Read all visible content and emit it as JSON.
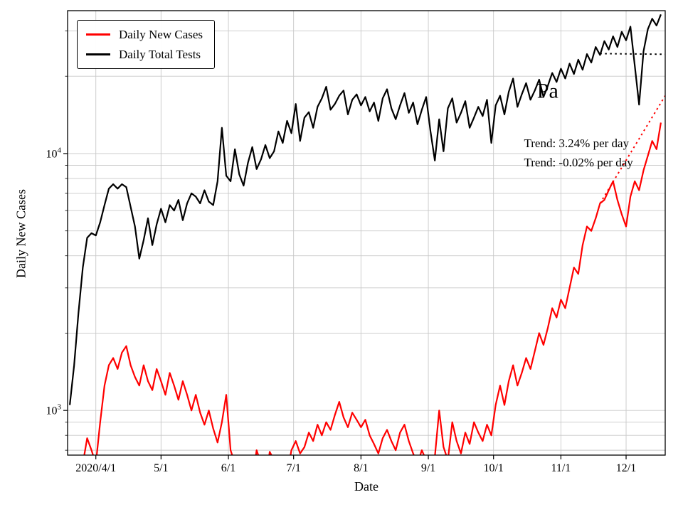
{
  "chart_data": {
    "type": "line",
    "xlabel": "Date",
    "ylabel": "Daily New Cases",
    "grid_color": "#c8c8c8",
    "axis_color": "#000000",
    "x_axis": {
      "range_days": [
        0,
        275
      ],
      "start_date": "2020-03-19",
      "ticks": [
        {
          "day": 13,
          "label": "2020/4/1"
        },
        {
          "day": 43,
          "label": "5/1"
        },
        {
          "day": 74,
          "label": "6/1"
        },
        {
          "day": 104,
          "label": "7/1"
        },
        {
          "day": 135,
          "label": "8/1"
        },
        {
          "day": 166,
          "label": "9/1"
        },
        {
          "day": 196,
          "label": "10/1"
        },
        {
          "day": 227,
          "label": "11/1"
        },
        {
          "day": 257,
          "label": "12/1"
        }
      ]
    },
    "y_axis": {
      "scale": "log",
      "range": [
        670,
        36000
      ],
      "major_ticks": [
        {
          "value": 1000,
          "base": "10",
          "exponent": "3"
        },
        {
          "value": 10000,
          "base": "10",
          "exponent": "4"
        }
      ],
      "minor_gridlines": [
        700,
        800,
        900,
        2000,
        3000,
        4000,
        5000,
        6000,
        7000,
        8000,
        9000,
        20000,
        30000
      ]
    },
    "series": [
      {
        "name": "Daily New Cases",
        "color": "#ff0000",
        "start_day": 1,
        "step_days": 2,
        "values": [
          550,
          600,
          560,
          620,
          780,
          700,
          620,
          900,
          1250,
          1500,
          1600,
          1450,
          1680,
          1780,
          1500,
          1350,
          1250,
          1500,
          1300,
          1200,
          1450,
          1300,
          1150,
          1400,
          1250,
          1100,
          1300,
          1150,
          1000,
          1150,
          980,
          880,
          1000,
          850,
          750,
          900,
          1150,
          700,
          620,
          560,
          640,
          580,
          540,
          700,
          620,
          520,
          690,
          640,
          580,
          620,
          560,
          700,
          760,
          680,
          720,
          820,
          760,
          880,
          800,
          900,
          840,
          960,
          1080,
          940,
          860,
          980,
          920,
          860,
          920,
          800,
          740,
          680,
          780,
          840,
          760,
          700,
          820,
          880,
          760,
          680,
          620,
          700,
          640,
          580,
          660,
          1000,
          720,
          640,
          900,
          760,
          680,
          820,
          740,
          900,
          820,
          760,
          880,
          800,
          1050,
          1250,
          1050,
          1300,
          1500,
          1250,
          1400,
          1600,
          1450,
          1700,
          2000,
          1800,
          2100,
          2500,
          2300,
          2700,
          2500,
          3000,
          3600,
          3400,
          4400,
          5200,
          5000,
          5600,
          6400,
          6600,
          7200,
          7800,
          6600,
          5800,
          5200,
          6800,
          7800,
          7200,
          8600,
          9800,
          11200,
          10400,
          13200
        ]
      },
      {
        "name": "Daily Total Tests",
        "color": "#000000",
        "start_day": 1,
        "step_days": 2,
        "values": [
          1050,
          1500,
          2400,
          3600,
          4700,
          4900,
          4800,
          5400,
          6300,
          7300,
          7600,
          7300,
          7600,
          7400,
          6200,
          5200,
          3900,
          4600,
          5600,
          4400,
          5300,
          6100,
          5400,
          6300,
          6000,
          6600,
          5500,
          6400,
          7000,
          6800,
          6400,
          7200,
          6500,
          6300,
          7800,
          12600,
          8200,
          7800,
          10400,
          8300,
          7500,
          9200,
          10600,
          8700,
          9500,
          10800,
          9600,
          10200,
          12200,
          11000,
          13400,
          12000,
          15600,
          11200,
          13800,
          14500,
          12600,
          15200,
          16400,
          18200,
          14800,
          15600,
          16800,
          17600,
          14200,
          16200,
          17000,
          15400,
          16600,
          14600,
          15800,
          13400,
          16400,
          17800,
          15000,
          13600,
          15400,
          17200,
          14400,
          15800,
          13000,
          14800,
          16600,
          12200,
          9400,
          13600,
          10200,
          15000,
          16400,
          13200,
          14400,
          16000,
          12600,
          13800,
          15200,
          14000,
          16200,
          11000,
          15400,
          16800,
          14200,
          17400,
          19600,
          15200,
          17000,
          18800,
          16200,
          17600,
          19400,
          16600,
          18400,
          20600,
          19000,
          21400,
          19600,
          22400,
          20400,
          23200,
          21200,
          24400,
          22600,
          26000,
          24200,
          27400,
          25400,
          28600,
          26000,
          29800,
          27600,
          31200,
          22000,
          15500,
          25000,
          30500,
          33500,
          31500,
          34800
        ]
      }
    ],
    "trend_lines": [
      {
        "id": "cases-trend",
        "color": "#ff0000",
        "rate_label": "Trend: 3.24% per day",
        "x0_day": 245,
        "y0": 6400,
        "x1_day": 275,
        "y1": 16800
      },
      {
        "id": "tests-trend",
        "color": "#000000",
        "rate_label": "Trend: -0.02% per day",
        "x0_day": 245,
        "y0": 24500,
        "x1_day": 275,
        "y1": 24350
      }
    ],
    "annotations": [
      {
        "id": "state-label",
        "text": "Pa",
        "x_day": 216,
        "y_value": 16500,
        "font_size": 30,
        "color": "#000000"
      },
      {
        "id": "trend-label-cases",
        "text": "Trend: 3.24% per day",
        "x_day": 210,
        "y_value": 10600,
        "font_size": 17,
        "color": "#000000"
      },
      {
        "id": "trend-label-tests",
        "text": "Trend: -0.02% per day",
        "x_day": 210,
        "y_value": 8900,
        "font_size": 17,
        "color": "#000000"
      }
    ],
    "legend": {
      "items": [
        {
          "label": "Daily New Cases",
          "color": "#ff0000"
        },
        {
          "label": "Daily Total Tests",
          "color": "#000000"
        }
      ]
    }
  }
}
